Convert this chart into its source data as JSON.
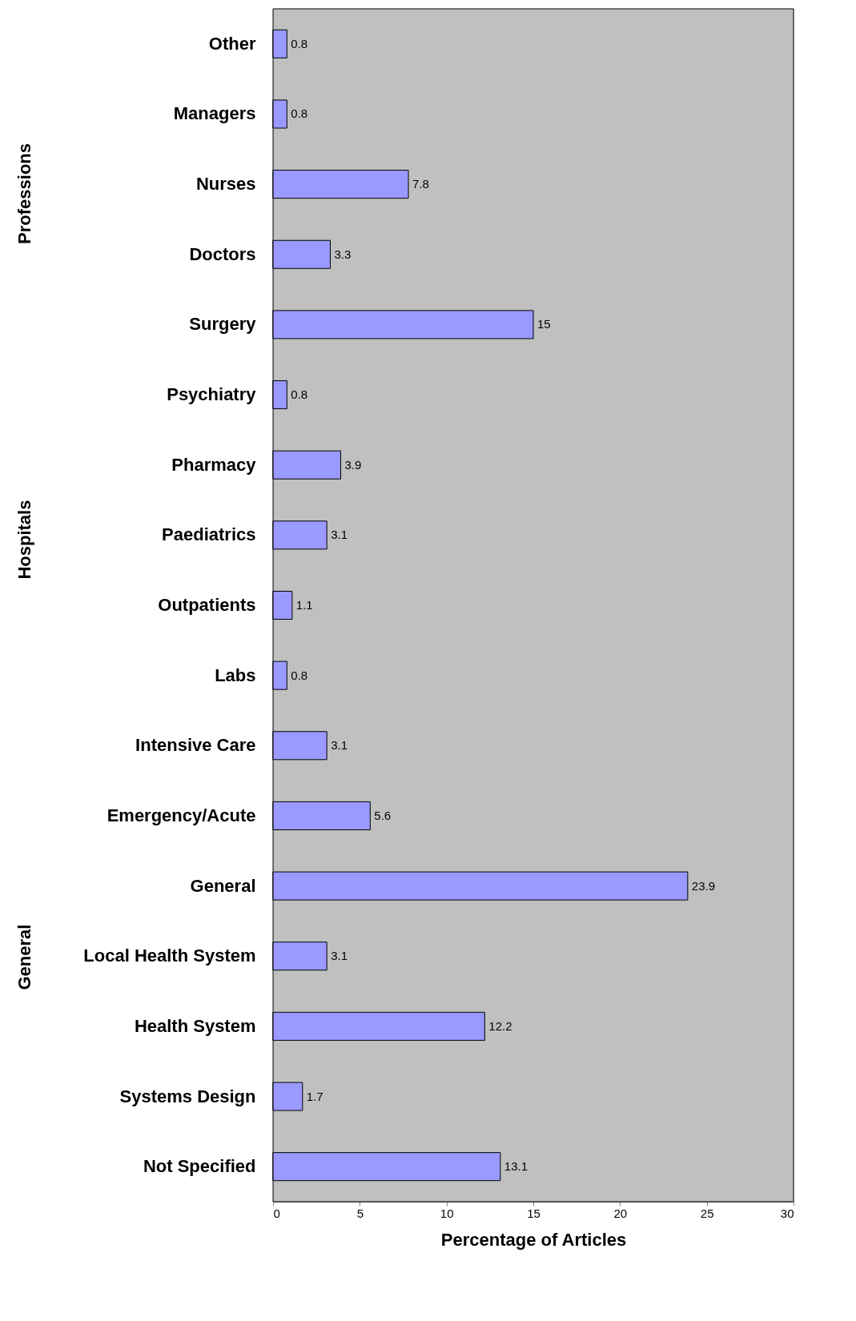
{
  "chart_data": {
    "type": "bar",
    "orientation": "horizontal",
    "categories": [
      "Other",
      "Managers",
      "Nurses",
      "Doctors",
      "Surgery",
      "Psychiatry",
      "Pharmacy",
      "Paediatrics",
      "Outpatients",
      "Labs",
      "Intensive Care",
      "Emergency/Acute",
      "General",
      "Local Health System",
      "Health System",
      "Systems Design",
      "Not Specified"
    ],
    "values": [
      0.8,
      0.8,
      7.8,
      3.3,
      15,
      0.8,
      3.9,
      3.1,
      1.1,
      0.8,
      3.1,
      5.6,
      23.9,
      3.1,
      12.2,
      1.7,
      13.1
    ],
    "color": "#9999ff",
    "xlim": [
      0,
      30
    ],
    "xticks": [
      0,
      5,
      10,
      15,
      20,
      25,
      30
    ],
    "xlabel": "Percentage of Articles",
    "data_labels": true,
    "annotations": [
      "Professions",
      "Hospitals",
      "General"
    ]
  }
}
